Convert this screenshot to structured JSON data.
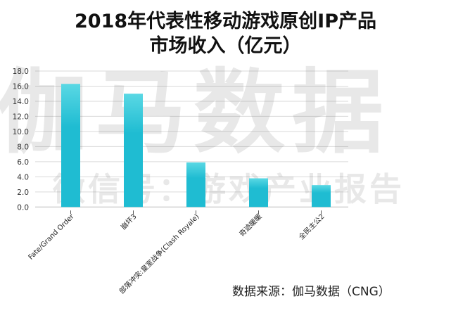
{
  "chart_data": {
    "type": "bar",
    "title": [
      "2018年代表性移动游戏原创IP产品",
      "市场收入（亿元）"
    ],
    "xlabel": "",
    "ylabel": "",
    "ylim": [
      0,
      18
    ],
    "yticks": [
      "0.0",
      "2.0",
      "4.0",
      "6.0",
      "8.0",
      "10.0",
      "12.0",
      "14.0",
      "16.0",
      "18.0"
    ],
    "grid": true,
    "legend": "none",
    "categories": [
      "Fate/Grand Order",
      "崩坏3",
      "部落冲突:皇室战争(Clash Royale)",
      "奇迹暖暖",
      "全民主公2"
    ],
    "values": [
      16.3,
      15.0,
      5.9,
      3.8,
      2.9
    ],
    "bar_color": "#1fbcd2",
    "bar_color_top": "#5ad8e4"
  },
  "watermark": {
    "main": "伽马数据",
    "sub": "微信号：游戏产业报告"
  },
  "source": "数据来源：伽马数据（CNG）"
}
